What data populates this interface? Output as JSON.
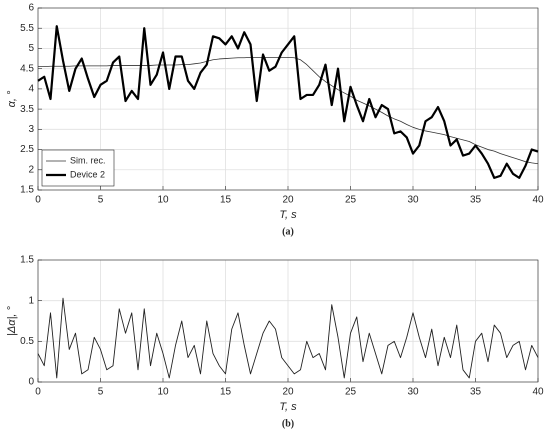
{
  "chart_data": [
    {
      "type": "line",
      "caption": "(a)",
      "xlabel": "T, s",
      "ylabel": "α, °",
      "x": [
        0,
        0.5,
        1,
        1.5,
        2,
        2.5,
        3,
        3.5,
        4,
        4.5,
        5,
        5.5,
        6,
        6.5,
        7,
        7.5,
        8,
        8.5,
        9,
        9.5,
        10,
        10.5,
        11,
        11.5,
        12,
        12.5,
        13,
        13.5,
        14,
        14.5,
        15,
        15.5,
        16,
        16.5,
        17,
        17.5,
        18,
        18.5,
        19,
        19.5,
        20,
        20.5,
        21,
        21.5,
        22,
        22.5,
        23,
        23.5,
        24,
        24.5,
        25,
        25.5,
        26,
        26.5,
        27,
        27.5,
        28,
        28.5,
        29,
        29.5,
        30,
        30.5,
        31,
        31.5,
        32,
        32.5,
        33,
        33.5,
        34,
        34.5,
        35,
        35.5,
        36,
        36.5,
        37,
        37.5,
        38,
        38.5,
        39,
        39.5,
        40
      ],
      "series": [
        {
          "name": "Sim. rec.",
          "color": "#333333",
          "width": 0.8,
          "values": [
            4.55,
            4.55,
            4.56,
            4.56,
            4.56,
            4.56,
            4.57,
            4.57,
            4.57,
            4.57,
            4.57,
            4.57,
            4.58,
            4.58,
            4.58,
            4.58,
            4.58,
            4.58,
            4.58,
            4.59,
            4.59,
            4.59,
            4.59,
            4.6,
            4.6,
            4.62,
            4.64,
            4.68,
            4.72,
            4.74,
            4.75,
            4.76,
            4.77,
            4.77,
            4.78,
            4.78,
            4.78,
            4.78,
            4.78,
            4.78,
            4.78,
            4.77,
            4.72,
            4.6,
            4.45,
            4.3,
            4.18,
            4.08,
            3.98,
            3.9,
            3.82,
            3.72,
            3.65,
            3.58,
            3.5,
            3.42,
            3.33,
            3.26,
            3.2,
            3.12,
            3.05,
            3.0,
            2.96,
            2.93,
            2.9,
            2.87,
            2.82,
            2.78,
            2.74,
            2.7,
            2.62,
            2.56,
            2.5,
            2.46,
            2.4,
            2.35,
            2.3,
            2.25,
            2.2,
            2.17,
            2.15
          ]
        },
        {
          "name": "Device 2",
          "color": "#000000",
          "width": 2.2,
          "values": [
            4.2,
            4.3,
            3.75,
            5.55,
            4.7,
            3.95,
            4.5,
            4.75,
            4.25,
            3.8,
            4.1,
            4.2,
            4.65,
            4.8,
            3.7,
            3.95,
            3.75,
            5.5,
            4.1,
            4.35,
            4.9,
            4.0,
            4.8,
            4.8,
            4.2,
            4.0,
            4.4,
            4.6,
            5.3,
            5.25,
            5.1,
            5.3,
            5.0,
            5.4,
            5.1,
            3.7,
            4.85,
            4.45,
            4.55,
            4.9,
            5.1,
            5.3,
            3.75,
            3.85,
            3.85,
            4.1,
            4.6,
            3.6,
            4.5,
            3.2,
            4.05,
            3.6,
            3.2,
            3.75,
            3.3,
            3.6,
            3.5,
            2.9,
            2.95,
            2.8,
            2.4,
            2.6,
            3.2,
            3.3,
            3.55,
            3.2,
            2.6,
            2.75,
            2.35,
            2.4,
            2.6,
            2.4,
            2.15,
            1.8,
            1.85,
            2.15,
            1.9,
            1.8,
            2.1,
            2.5,
            2.45
          ]
        }
      ],
      "xlim": [
        0,
        40
      ],
      "xticks": [
        0,
        5,
        10,
        15,
        20,
        25,
        30,
        35,
        40
      ],
      "ylim": [
        1.5,
        6
      ],
      "yticks": [
        1.5,
        2,
        2.5,
        3,
        3.5,
        4,
        4.5,
        5,
        5.5,
        6
      ],
      "grid": true,
      "legend": "lower left"
    },
    {
      "type": "line",
      "caption": "(b)",
      "xlabel": "T, s",
      "ylabel": "|Δα|, °",
      "x": [
        0,
        0.5,
        1,
        1.5,
        2,
        2.5,
        3,
        3.5,
        4,
        4.5,
        5,
        5.5,
        6,
        6.5,
        7,
        7.5,
        8,
        8.5,
        9,
        9.5,
        10,
        10.5,
        11,
        11.5,
        12,
        12.5,
        13,
        13.5,
        14,
        14.5,
        15,
        15.5,
        16,
        16.5,
        17,
        17.5,
        18,
        18.5,
        19,
        19.5,
        20,
        20.5,
        21,
        21.5,
        22,
        22.5,
        23,
        23.5,
        24,
        24.5,
        25,
        25.5,
        26,
        26.5,
        27,
        27.5,
        28,
        28.5,
        29,
        29.5,
        30,
        30.5,
        31,
        31.5,
        32,
        32.5,
        33,
        33.5,
        34,
        34.5,
        35,
        35.5,
        36,
        36.5,
        37,
        37.5,
        38,
        38.5,
        39,
        39.5,
        40
      ],
      "series": [
        {
          "color": "#222222",
          "width": 0.9,
          "values": [
            0.35,
            0.2,
            0.85,
            0.05,
            1.03,
            0.4,
            0.6,
            0.1,
            0.15,
            0.55,
            0.4,
            0.15,
            0.2,
            0.9,
            0.6,
            0.85,
            0.15,
            0.9,
            0.2,
            0.6,
            0.35,
            0.05,
            0.45,
            0.75,
            0.3,
            0.45,
            0.1,
            0.75,
            0.35,
            0.2,
            0.1,
            0.65,
            0.85,
            0.45,
            0.1,
            0.35,
            0.6,
            0.75,
            0.65,
            0.3,
            0.2,
            0.1,
            0.15,
            0.5,
            0.3,
            0.35,
            0.15,
            0.95,
            0.55,
            0.05,
            0.6,
            0.8,
            0.25,
            0.6,
            0.35,
            0.1,
            0.45,
            0.5,
            0.3,
            0.55,
            0.85,
            0.55,
            0.3,
            0.65,
            0.2,
            0.55,
            0.3,
            0.7,
            0.15,
            0.05,
            0.5,
            0.6,
            0.25,
            0.7,
            0.6,
            0.3,
            0.45,
            0.5,
            0.15,
            0.45,
            0.3
          ]
        }
      ],
      "xlim": [
        0,
        40
      ],
      "xticks": [
        0,
        5,
        10,
        15,
        20,
        25,
        30,
        35,
        40
      ],
      "ylim": [
        0,
        1.5
      ],
      "yticks": [
        0,
        0.5,
        1,
        1.5
      ],
      "grid": true
    }
  ]
}
